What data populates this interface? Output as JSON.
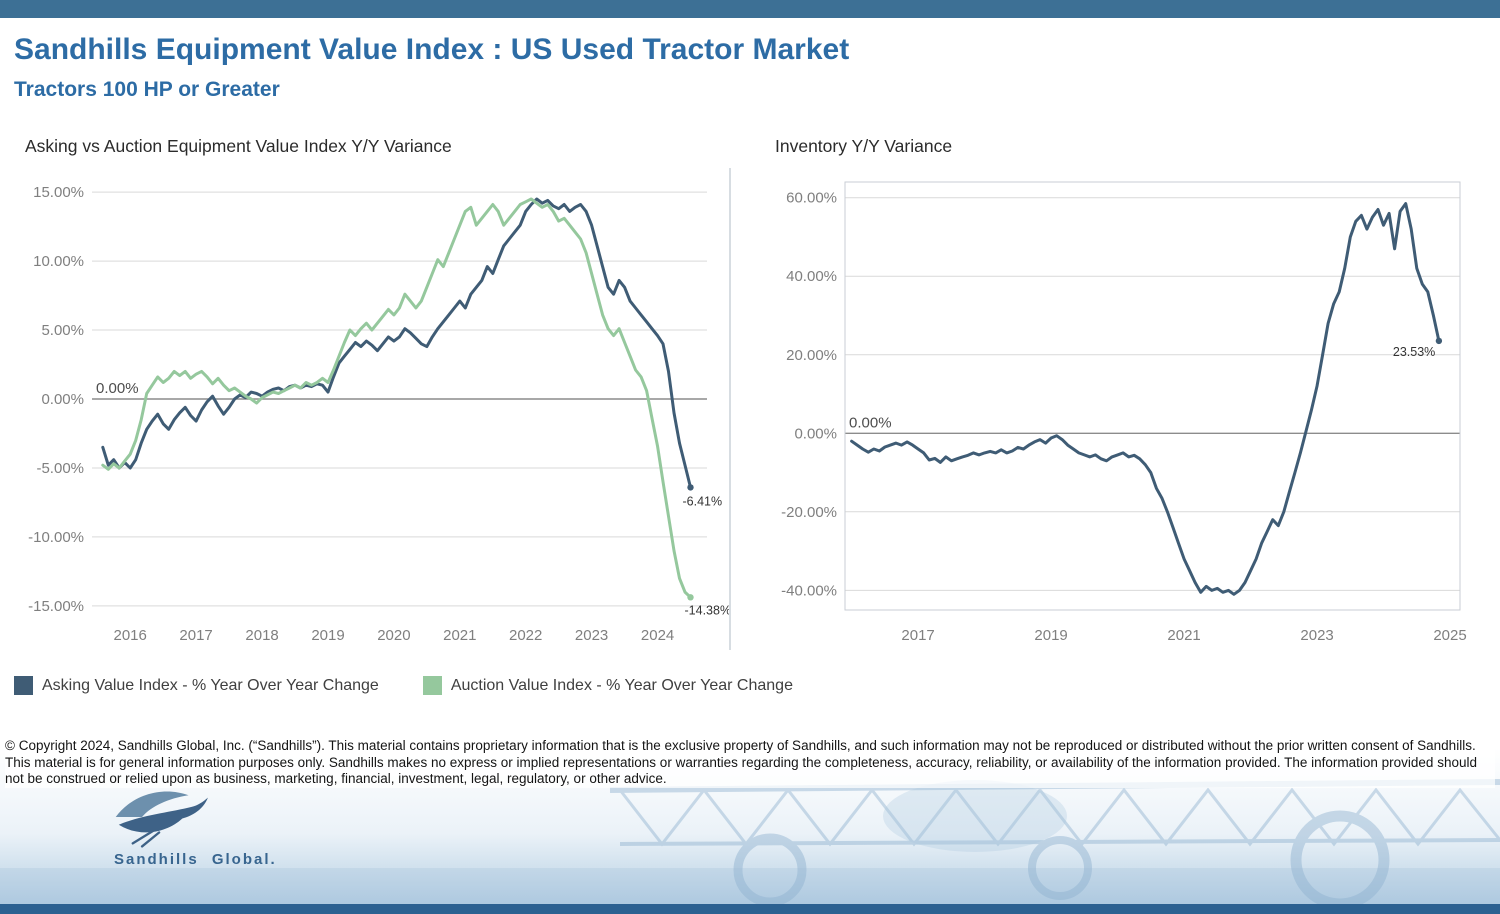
{
  "page": {
    "title": "Sandhills Equipment Value Index : US Used Tractor Market",
    "subtitle": "Tractors 100 HP or Greater",
    "accent_color": "#2d6ca5",
    "top_bar_color": "#3d7095",
    "bottom_bar_color": "#2c6191"
  },
  "legend": {
    "items": [
      {
        "label": "Asking Value Index - % Year Over Year Change",
        "color": "#3f5c75"
      },
      {
        "label": "Auction Value Index - % Year Over Year Change",
        "color": "#95c89d"
      }
    ]
  },
  "disclaimer": "© Copyright 2024, Sandhills Global, Inc. (“Sandhills”). This material contains proprietary information that is the exclusive property of Sandhills, and such information may not be reproduced or distributed without the prior written consent of Sandhills. This material is for general information purposes only. Sandhills makes no express or implied representations or warranties regarding the completeness, accuracy, reliability, or availability of the information provided. The information provided should not be construed or relied upon as business, marketing, financial, investment, legal, regulatory, or other advice.",
  "logo": {
    "text": "Sandhills Global."
  },
  "chart_data": [
    {
      "type": "line",
      "title": "Asking vs Auction Equipment Value Index Y/Y Variance",
      "xlabel": "",
      "ylabel": "",
      "x_unit": "decimal_year_monthly",
      "x_start": 2015.5833,
      "x_step": 0.08333,
      "xlim": [
        2015.42,
        2024.75
      ],
      "ylim": [
        -15.3,
        15.3
      ],
      "y_ticks": [
        15,
        10,
        5,
        0,
        -5,
        -10,
        -15
      ],
      "x_ticks": [
        2016,
        2017,
        2018,
        2019,
        2020,
        2021,
        2022,
        2023,
        2024
      ],
      "zero_label": "0.00%",
      "grid": true,
      "border": false,
      "legend_position": "bottom-left",
      "series": [
        {
          "name": "Asking Value Index - % Year Over Year Change",
          "color": "#3f5c75",
          "end_label": "-6.41%",
          "values": [
            -3.5,
            -4.8,
            -4.4,
            -5.0,
            -4.6,
            -5.0,
            -4.4,
            -3.2,
            -2.2,
            -1.6,
            -1.1,
            -1.8,
            -2.2,
            -1.5,
            -1.0,
            -0.6,
            -1.2,
            -1.6,
            -0.8,
            -0.2,
            0.2,
            -0.5,
            -1.1,
            -0.6,
            0.0,
            0.3,
            0.1,
            0.5,
            0.4,
            0.2,
            0.5,
            0.7,
            0.8,
            0.6,
            0.9,
            1.0,
            0.8,
            1.0,
            0.9,
            1.1,
            1.0,
            0.5,
            1.6,
            2.6,
            3.1,
            3.6,
            4.1,
            3.8,
            4.2,
            3.9,
            3.5,
            4.0,
            4.5,
            4.2,
            4.5,
            5.1,
            4.8,
            4.4,
            4.0,
            3.8,
            4.5,
            5.1,
            5.6,
            6.1,
            6.6,
            7.1,
            6.6,
            7.6,
            8.1,
            8.6,
            9.6,
            9.1,
            10.1,
            11.1,
            11.6,
            12.1,
            12.6,
            13.6,
            14.1,
            14.5,
            14.2,
            14.4,
            14.0,
            13.8,
            14.1,
            13.6,
            13.9,
            14.1,
            13.6,
            12.6,
            11.1,
            9.6,
            8.1,
            7.6,
            8.6,
            8.1,
            7.1,
            6.6,
            6.1,
            5.6,
            5.1,
            4.6,
            4.0,
            2.0,
            -1.0,
            -3.2,
            -4.8,
            -6.41
          ]
        },
        {
          "name": "Auction Value Index - % Year Over Year Change",
          "color": "#95c89d",
          "end_label": "-14.38%",
          "values": [
            -4.8,
            -5.1,
            -4.7,
            -5.0,
            -4.5,
            -4.0,
            -3.0,
            -1.5,
            0.4,
            1.0,
            1.6,
            1.2,
            1.5,
            2.0,
            1.7,
            2.0,
            1.5,
            1.8,
            2.0,
            1.6,
            1.1,
            1.5,
            1.0,
            0.6,
            0.8,
            0.5,
            0.2,
            0.0,
            -0.3,
            0.1,
            0.3,
            0.5,
            0.4,
            0.6,
            0.8,
            1.0,
            0.8,
            1.2,
            1.0,
            1.2,
            1.5,
            1.2,
            2.1,
            3.1,
            4.1,
            5.0,
            4.6,
            5.1,
            5.5,
            5.0,
            5.5,
            6.0,
            6.5,
            6.1,
            6.6,
            7.6,
            7.1,
            6.6,
            7.1,
            8.1,
            9.1,
            10.1,
            9.6,
            10.6,
            11.6,
            12.6,
            13.6,
            13.9,
            12.6,
            13.1,
            13.6,
            14.1,
            13.6,
            12.6,
            13.1,
            13.6,
            14.1,
            14.3,
            14.5,
            14.2,
            13.9,
            14.1,
            13.6,
            12.9,
            13.1,
            12.6,
            12.1,
            11.6,
            10.6,
            9.1,
            7.6,
            6.1,
            5.1,
            4.6,
            5.1,
            4.1,
            3.1,
            2.1,
            1.6,
            0.6,
            -1.4,
            -3.4,
            -6.0,
            -8.5,
            -11.0,
            -13.0,
            -14.0,
            -14.38
          ]
        }
      ]
    },
    {
      "type": "line",
      "title": "Inventory Y/Y Variance",
      "xlabel": "",
      "ylabel": "",
      "x_unit": "decimal_year_monthly",
      "x_start": 2016.0,
      "x_step": 0.08333,
      "xlim": [
        2015.9,
        2025.15
      ],
      "ylim": [
        -45,
        64
      ],
      "y_ticks": [
        60,
        40,
        20,
        0,
        -20,
        -40
      ],
      "x_ticks": [
        2017,
        2019,
        2021,
        2023,
        2025
      ],
      "zero_label": "0.00%",
      "grid": true,
      "border": true,
      "legend_position": "none",
      "series": [
        {
          "name": "Inventory Y/Y Variance",
          "color": "#3f5c75",
          "end_label": "23.53%",
          "values": [
            -2.0,
            -3.0,
            -4.0,
            -4.8,
            -4.0,
            -4.5,
            -3.5,
            -3.0,
            -2.5,
            -3.0,
            -2.2,
            -3.0,
            -4.0,
            -5.0,
            -6.8,
            -6.4,
            -7.4,
            -6.0,
            -7.0,
            -6.5,
            -6.0,
            -5.6,
            -5.0,
            -5.5,
            -5.0,
            -4.6,
            -5.0,
            -4.2,
            -5.0,
            -4.5,
            -3.6,
            -4.0,
            -3.0,
            -2.2,
            -1.6,
            -2.5,
            -1.2,
            -0.6,
            -1.6,
            -3.0,
            -4.0,
            -5.0,
            -5.5,
            -6.0,
            -5.5,
            -6.5,
            -7.0,
            -6.0,
            -5.5,
            -5.0,
            -6.0,
            -5.6,
            -6.5,
            -8.0,
            -10.0,
            -14.0,
            -16.5,
            -20.0,
            -24.0,
            -28.0,
            -32.0,
            -35.0,
            -38.0,
            -40.5,
            -39.0,
            -40.0,
            -39.5,
            -40.5,
            -40.0,
            -41.0,
            -40.0,
            -38.0,
            -35.0,
            -32.0,
            -28.0,
            -25.0,
            -22.0,
            -23.5,
            -20.0,
            -15.0,
            -10.0,
            -5.0,
            0.5,
            6.0,
            12.0,
            20.0,
            28.0,
            33.0,
            36.0,
            42.0,
            50.0,
            54.0,
            55.5,
            52.0,
            55.0,
            57.0,
            53.0,
            56.0,
            47.0,
            56.5,
            58.5,
            52.0,
            42.0,
            38.0,
            36.0,
            30.0,
            23.53
          ]
        }
      ]
    }
  ]
}
